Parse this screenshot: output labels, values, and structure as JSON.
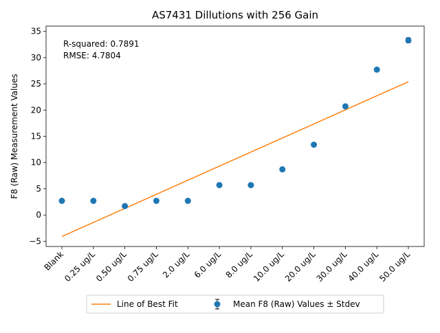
{
  "chart_data": {
    "type": "scatter",
    "title": "AS7431 Dillutions with 256 Gain",
    "xlabel": "",
    "ylabel": "F8 (Raw) Measurement Values",
    "categories": [
      "Blank",
      "0.25 ug/L",
      "0.50 ug/L",
      "0.75 ug/L",
      "2.0 ug/L",
      "6.0 ug/L",
      "8.0 ug/L",
      "10.0 ug/L",
      "20.0 ug/L",
      "30.0 ug/L",
      "40.0 ug/L",
      "50.0 ug/L"
    ],
    "series": [
      {
        "name": "Mean F8 (Raw) Values ± Stdev",
        "kind": "points-with-errorbars",
        "color": "#1f77b4",
        "values": [
          2.7,
          2.7,
          1.7,
          2.7,
          2.7,
          5.7,
          5.7,
          8.7,
          13.4,
          20.7,
          27.7,
          33.3
        ],
        "stdev": [
          0.3,
          0.3,
          0.3,
          0.3,
          0.3,
          0.3,
          0.3,
          0.3,
          0.3,
          0.3,
          0.3,
          0.5
        ]
      },
      {
        "name": "Line of Best Fit",
        "kind": "line",
        "color": "#ff7f0e",
        "endpoints": [
          -4.1,
          25.4
        ]
      }
    ],
    "ylim": [
      -6,
      36
    ],
    "yticks": [
      -5,
      0,
      5,
      10,
      15,
      20,
      25,
      30,
      35
    ],
    "grid": false,
    "legend_position": "bottom-center",
    "annotations": [
      "R-squared: 0.7891",
      "RMSE: 4.7804"
    ]
  }
}
